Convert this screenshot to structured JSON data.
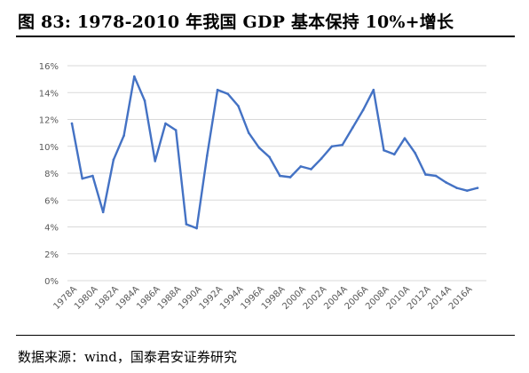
{
  "header": {
    "title": "图 83: 1978-2010 年我国 GDP 基本保持 10%+增长"
  },
  "footer": {
    "source": "数据来源：wind，国泰君安证券研究"
  },
  "colors": {
    "line": "#4472C4",
    "grid": "#d9d9d9",
    "tick_text": "#595959"
  },
  "chart_data": {
    "type": "line",
    "title": "",
    "xlabel": "",
    "ylabel": "",
    "ylim": [
      0,
      16
    ],
    "grid": true,
    "y_ticks": [
      "0%",
      "2%",
      "4%",
      "6%",
      "8%",
      "10%",
      "12%",
      "14%",
      "16%"
    ],
    "y_tick_values": [
      0,
      2,
      4,
      6,
      8,
      10,
      12,
      14,
      16
    ],
    "x_tick_labels": [
      "1978A",
      "1980A",
      "1982A",
      "1984A",
      "1986A",
      "1988A",
      "1990A",
      "1992A",
      "1994A",
      "1996A",
      "1998A",
      "2000A",
      "2002A",
      "2004A",
      "2006A",
      "2008A",
      "2010A",
      "2012A",
      "2014A",
      "2016A"
    ],
    "x": [
      1978,
      1979,
      1980,
      1981,
      1982,
      1983,
      1984,
      1985,
      1986,
      1987,
      1988,
      1989,
      1990,
      1991,
      1992,
      1993,
      1994,
      1995,
      1996,
      1997,
      1998,
      1999,
      2000,
      2001,
      2002,
      2003,
      2004,
      2005,
      2006,
      2007,
      2008,
      2009,
      2010,
      2011,
      2012,
      2013,
      2014,
      2015,
      2016,
      2017
    ],
    "series": [
      {
        "values": [
          11.7,
          7.6,
          7.8,
          5.1,
          9.0,
          10.8,
          15.2,
          13.4,
          8.9,
          11.7,
          11.2,
          4.2,
          3.9,
          9.3,
          14.2,
          13.9,
          13.0,
          11.0,
          9.9,
          9.2,
          7.8,
          7.7,
          8.5,
          8.3,
          9.1,
          10.0,
          10.1,
          11.4,
          12.7,
          14.2,
          9.7,
          9.4,
          10.6,
          9.5,
          7.9,
          7.8,
          7.3,
          6.9,
          6.7,
          6.9
        ]
      }
    ]
  }
}
